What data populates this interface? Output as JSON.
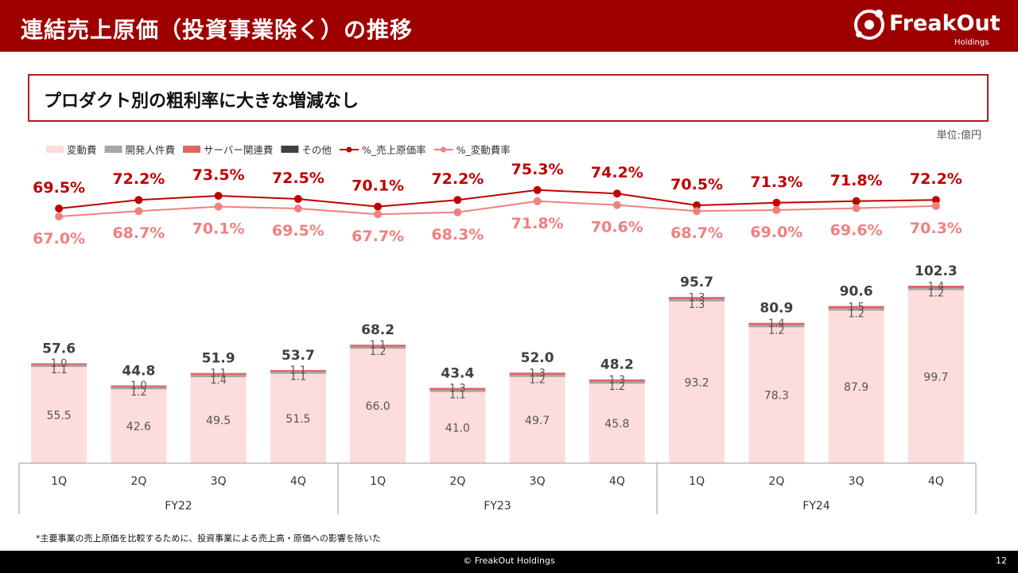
{
  "header": {
    "title": "連結売上原価（投資事業除く）の推移"
  },
  "logo": {
    "name": "FreakOut",
    "sub": "Holdings"
  },
  "subtitle": "プロダクト別の粗利率に大きな増減なし",
  "unit_label": "単位:億円",
  "footnote": "*主要事業の売上原価を比較するために、投資事業による売上高・原価への影響を除いた",
  "footer": {
    "copyright": "© FreakOut Holdings",
    "page": "12"
  },
  "colors": {
    "brand": "#9e0000",
    "variable": "#fddcdc",
    "dev": "#a6a6a6",
    "server": "#e06666",
    "other": "#404040",
    "cost_rate_line": "#c00000",
    "var_rate_line": "#f08080"
  },
  "chart_data": {
    "type": "bar",
    "stacked": true,
    "categories": [
      "1Q",
      "2Q",
      "3Q",
      "4Q",
      "1Q",
      "2Q",
      "3Q",
      "4Q",
      "1Q",
      "2Q",
      "3Q",
      "4Q"
    ],
    "groups": [
      {
        "label": "FY22",
        "start": 0,
        "count": 4
      },
      {
        "label": "FY23",
        "start": 4,
        "count": 4
      },
      {
        "label": "FY24",
        "start": 8,
        "count": 4
      }
    ],
    "ylim": [
      0,
      110
    ],
    "legend_position": "top-left",
    "series": [
      {
        "name": "変動費",
        "key": "variable",
        "values": [
          55.5,
          42.6,
          49.5,
          51.5,
          66.0,
          41.0,
          49.7,
          45.8,
          93.2,
          78.3,
          87.9,
          99.7
        ],
        "labels": [
          "55.5",
          "42.6",
          "49.5",
          "51.5",
          "66.0",
          "41.0",
          "49.7",
          "45.8",
          "93.2",
          "78.3",
          "87.9",
          "99.7"
        ]
      },
      {
        "name": "開発人件費",
        "key": "dev",
        "values": [
          1.1,
          1.2,
          1.4,
          1.1,
          1.2,
          1.1,
          1.2,
          1.2,
          1.3,
          1.2,
          1.2,
          1.2
        ],
        "labels": [
          "1.1",
          "1.2",
          "1.4",
          "1.1",
          "1.2",
          "1.1",
          "1.2",
          "1.2",
          "1.3",
          "1.2",
          "1.2",
          "1.2"
        ]
      },
      {
        "name": "サーバー関連費",
        "key": "server",
        "values": [
          1.0,
          1.0,
          1.1,
          1.1,
          1.1,
          1.3,
          1.3,
          1.3,
          1.3,
          1.4,
          1.5,
          1.4
        ],
        "labels": [
          "1.0",
          "1.0",
          "1.1",
          "1.1",
          "1.1",
          "1.3",
          "1.3",
          "1.3",
          "1.3",
          "1.4",
          "1.5",
          "1.4"
        ]
      },
      {
        "name": "その他",
        "key": "other",
        "values": [
          0.0,
          0.0,
          0.0,
          0.0,
          0.0,
          0.0,
          0.0,
          0.0,
          0.0,
          0.0,
          0.0,
          0.0
        ]
      }
    ],
    "totals": [
      "57.6",
      "44.8",
      "51.9",
      "53.7",
      "68.2",
      "43.4",
      "52.0",
      "48.2",
      "95.7",
      "80.9",
      "90.6",
      "102.3"
    ],
    "lines": [
      {
        "name": "%_売上原価率",
        "key": "cost_rate",
        "values": [
          69.5,
          72.2,
          73.5,
          72.5,
          70.1,
          72.2,
          75.3,
          74.2,
          70.5,
          71.3,
          71.8,
          72.2
        ],
        "labels": [
          "69.5%",
          "72.2%",
          "73.5%",
          "72.5%",
          "70.1%",
          "72.2%",
          "75.3%",
          "74.2%",
          "70.5%",
          "71.3%",
          "71.8%",
          "72.2%"
        ]
      },
      {
        "name": "%_変動費率",
        "key": "var_rate",
        "values": [
          67.0,
          68.7,
          70.1,
          69.5,
          67.7,
          68.3,
          71.8,
          70.6,
          68.7,
          69.0,
          69.6,
          70.3
        ],
        "labels": [
          "67.0%",
          "68.7%",
          "70.1%",
          "69.5%",
          "67.7%",
          "68.3%",
          "71.8%",
          "70.6%",
          "68.7%",
          "69.0%",
          "69.6%",
          "70.3%"
        ]
      }
    ]
  }
}
